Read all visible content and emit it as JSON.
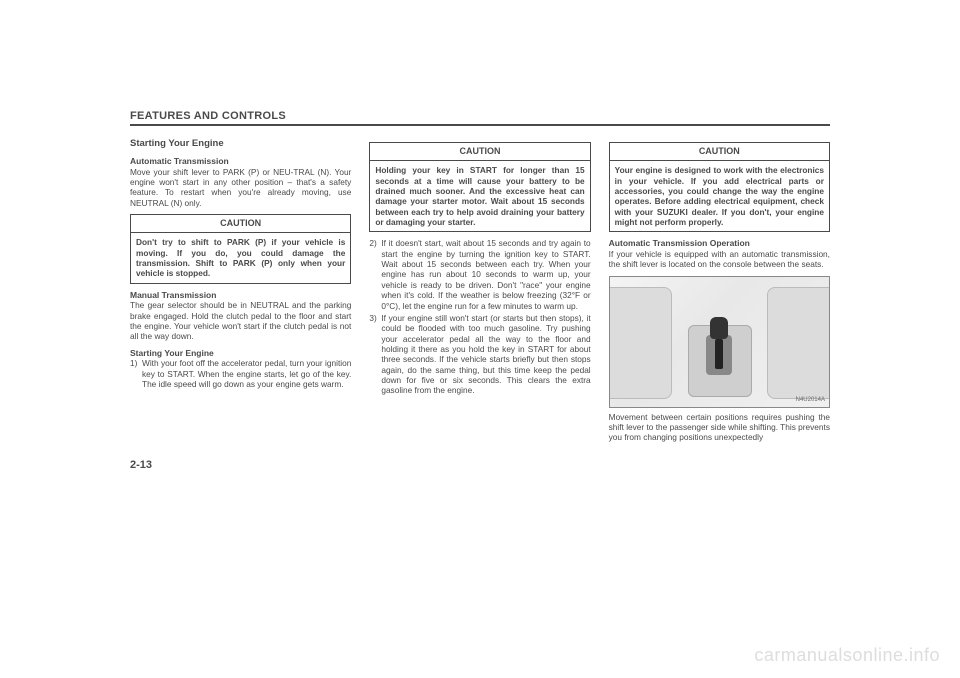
{
  "header": "FEATURES AND CONTROLS",
  "page_number": "2-13",
  "watermark": "carmanualsonline.info",
  "col1": {
    "title": "Starting Your Engine",
    "auto_trans_title": "Automatic Transmission",
    "auto_trans_body": "Move your shift lever to PARK (P) or NEU-TRAL (N). Your engine won't start in any other position – that's a safety feature. To restart when you're already moving, use NEUTRAL (N) only.",
    "caution1_label": "CAUTION",
    "caution1_body": "Don't try to shift to PARK (P) if your vehicle is moving. If you do, you could damage the transmission. Shift to PARK (P) only when your vehicle is stopped.",
    "manual_trans_title": "Manual Transmission",
    "manual_trans_body": "The gear selector should be in NEUTRAL and the parking brake engaged. Hold the clutch pedal to the floor and start the engine. Your vehicle won't start if the clutch pedal is not all the way down.",
    "start_title": "Starting Your Engine",
    "start_item1_num": "1)",
    "start_item1": "With your foot off the accelerator pedal, turn your ignition key to START. When the engine starts, let go of the key. The idle speed will go down as your engine gets warm."
  },
  "col2": {
    "caution2_label": "CAUTION",
    "caution2_body": "Holding your key in START for longer than 15 seconds at a time will cause your battery to be drained much sooner. And the excessive heat can damage your starter motor. Wait about 15 seconds between each try to help avoid draining your battery or damaging your starter.",
    "item2_num": "2)",
    "item2": "If it doesn't start, wait about 15 seconds and try again to start the engine by turning the ignition key to START. Wait about 15 seconds between each try. When your engine has run about 10 seconds to warm up, your vehicle is ready to be driven. Don't \"race\" your engine when it's cold. If the weather is below freezing (32°F or 0°C), let the engine run for a few minutes to warm up.",
    "item3_num": "3)",
    "item3": "If your engine still won't start (or starts but then stops), it could be flooded with too much gasoline. Try pushing your accelerator pedal all the way to the floor and holding it there as you hold the key in START for about three seconds. If the vehicle starts briefly but then stops again, do the same thing, but this time keep the pedal down for five or six seconds. This clears the extra gasoline from the engine."
  },
  "col3": {
    "caution3_label": "CAUTION",
    "caution3_body": "Your engine is designed to work with the electronics in your vehicle. If you add electrical parts or accessories, you could change the way the engine operates. Before adding electrical equipment, check with your SUZUKI dealer. If you don't, your engine might not perform properly.",
    "auto_op_title": "Automatic Transmission Operation",
    "auto_op_body": "If your vehicle is equipped with an automatic transmission, the shift lever is located on the console between the seats.",
    "fig_label": "N4U2014A",
    "movement_body": "Movement between certain positions requires pushing the shift lever to the passenger side while shifting. This prevents you from changing positions unexpectedly"
  }
}
